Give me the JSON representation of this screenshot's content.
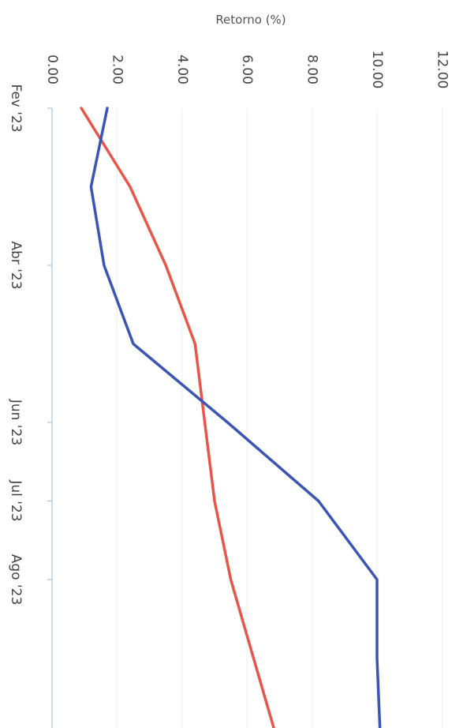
{
  "chart_data": {
    "type": "line",
    "title": "",
    "ylabel": "Retorno (%)",
    "xlabel": "",
    "ylim": [
      0,
      12
    ],
    "y_ticks": [
      "0.00",
      "2.00",
      "4.00",
      "6.00",
      "8.00",
      "10.00",
      "12.00"
    ],
    "x_tick_labels": [
      "Fev '23",
      "Abr '23",
      "Jun '23",
      "Jul '23",
      "Ago '23"
    ],
    "x_tick_months": [
      0,
      2,
      4,
      5,
      6
    ],
    "grid": true,
    "series": [
      {
        "color": "#e8564a",
        "x": [
          0,
          1,
          2,
          3,
          4,
          5,
          6,
          7,
          8
        ],
        "values": [
          0.9,
          2.4,
          3.5,
          4.4,
          4.7,
          5.0,
          5.5,
          6.2,
          6.9
        ]
      },
      {
        "color": "#3a55b4",
        "x": [
          0,
          1,
          2,
          3,
          4,
          5,
          6,
          7,
          8
        ],
        "values": [
          1.7,
          1.2,
          1.6,
          2.5,
          5.4,
          8.2,
          10.0,
          10.0,
          10.1
        ]
      }
    ]
  }
}
